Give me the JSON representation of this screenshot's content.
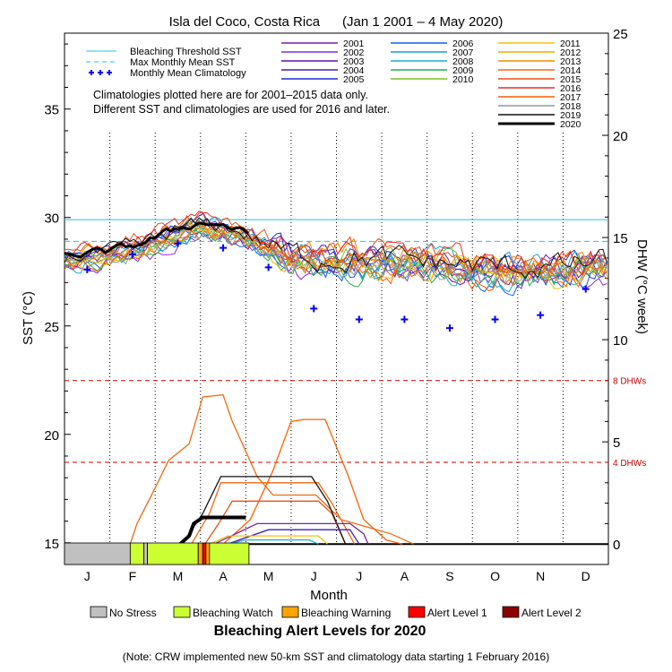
{
  "chart_data": {
    "type": "line",
    "title": "Isla del Coco, Costa Rica      (Jan 1 2001 – 4 May 2020)",
    "xlabel": "Month",
    "ylabel_left": "SST (°C)",
    "ylabel_right": "DHW (°C week)",
    "months": [
      "J",
      "F",
      "M",
      "A",
      "M",
      "J",
      "J",
      "A",
      "S",
      "O",
      "N",
      "D"
    ],
    "sst_axis": {
      "min": 14,
      "max": 38.5,
      "ticks": [
        15,
        20,
        25,
        30,
        35
      ]
    },
    "dhw_axis": {
      "min": -1,
      "max": 25,
      "ticks": [
        0,
        5,
        10,
        15,
        20,
        25
      ]
    },
    "bleaching_threshold_sst": 29.9,
    "max_monthly_mean_sst": 28.9,
    "dhw_thresholds": [
      {
        "value": 4,
        "label": "4 DHWs"
      },
      {
        "value": 8,
        "label": "8 DHWs"
      }
    ],
    "monthly_mean_climatology": [
      27.6,
      28.3,
      28.8,
      28.6,
      27.7,
      25.8,
      25.3,
      25.3,
      24.9,
      25.3,
      25.5,
      26.7
    ],
    "notes": [
      "Climatologies plotted here are for 2001–2015 data only.",
      "Different SST and climatologies are used for 2016 and later."
    ],
    "legend_reference": [
      {
        "name": "Bleaching Threshold SST",
        "color": "#22c4e8",
        "style": "solid"
      },
      {
        "name": "Max Monthly Mean SST",
        "color": "#22c4e8",
        "style": "dashed"
      },
      {
        "name": "Monthly Mean Climatology",
        "color": "#0000ff",
        "style": "plus"
      }
    ],
    "series": [
      {
        "name": "2001",
        "color": "#7a1fa2"
      },
      {
        "name": "2002",
        "color": "#8a2be2"
      },
      {
        "name": "2003",
        "color": "#6a0dad"
      },
      {
        "name": "2004",
        "color": "#3b1fbf"
      },
      {
        "name": "2005",
        "color": "#1f2fd6"
      },
      {
        "name": "2006",
        "color": "#1060e8"
      },
      {
        "name": "2007",
        "color": "#1f9bd6"
      },
      {
        "name": "2008",
        "color": "#1ab0c8"
      },
      {
        "name": "2009",
        "color": "#22b04a"
      },
      {
        "name": "2010",
        "color": "#7fbf2a"
      },
      {
        "name": "2011",
        "color": "#f4c20d"
      },
      {
        "name": "2012",
        "color": "#f2a900"
      },
      {
        "name": "2013",
        "color": "#f08c00"
      },
      {
        "name": "2014",
        "color": "#ee6a10"
      },
      {
        "name": "2015",
        "color": "#e8501a"
      },
      {
        "name": "2016",
        "color": "#ee2a2a"
      },
      {
        "name": "2017",
        "color": "#ff5e00"
      },
      {
        "name": "2018",
        "color": "#999999"
      },
      {
        "name": "2019",
        "color": "#111111"
      },
      {
        "name": "2020",
        "color": "#000000"
      }
    ],
    "dhw_curves": [
      {
        "name": "2016",
        "color": "#ee6a10",
        "points": [
          [
            1.45,
            0
          ],
          [
            1.6,
            1
          ],
          [
            1.9,
            2.3
          ],
          [
            2.3,
            4.1
          ],
          [
            2.75,
            4.9
          ],
          [
            3.05,
            7.2
          ],
          [
            3.5,
            7.3
          ],
          [
            3.7,
            6.0
          ],
          [
            4.25,
            3.3
          ],
          [
            4.6,
            2.4
          ],
          [
            5.55,
            2.4
          ],
          [
            6.1,
            1.2
          ],
          [
            7.2,
            0.5
          ],
          [
            7.7,
            0
          ]
        ]
      },
      {
        "name": "2017",
        "color": "#ff5e00",
        "points": [
          [
            3.5,
            0
          ],
          [
            4.1,
            1.2
          ],
          [
            4.6,
            3.6
          ],
          [
            5.0,
            6.0
          ],
          [
            5.3,
            6.1
          ],
          [
            5.75,
            6.1
          ],
          [
            6.25,
            3.4
          ],
          [
            6.6,
            1.2
          ],
          [
            7.1,
            0.2
          ],
          [
            7.45,
            0
          ]
        ]
      },
      {
        "name": "2014",
        "color": "#ee6a10",
        "points": [
          [
            2.8,
            0
          ],
          [
            3.2,
            1.5
          ],
          [
            3.45,
            3.0
          ],
          [
            4.25,
            3.0
          ],
          [
            5.0,
            3.0
          ],
          [
            5.6,
            3.0
          ],
          [
            5.9,
            2.0
          ],
          [
            6.4,
            0
          ]
        ]
      },
      {
        "name": "2015",
        "color": "#e8501a",
        "points": [
          [
            3.1,
            0
          ],
          [
            3.4,
            1.0
          ],
          [
            3.7,
            2.1
          ],
          [
            4.25,
            2.1
          ],
          [
            5.1,
            2.1
          ],
          [
            5.6,
            2.1
          ],
          [
            5.9,
            1.5
          ],
          [
            6.2,
            0
          ]
        ]
      },
      {
        "name": "2019",
        "color": "#111111",
        "points": [
          [
            2.6,
            0
          ],
          [
            3.05,
            1.5
          ],
          [
            3.45,
            3.3
          ],
          [
            4.1,
            3.3
          ],
          [
            4.7,
            3.3
          ],
          [
            5.45,
            3.3
          ],
          [
            5.8,
            2.1
          ],
          [
            6.2,
            0
          ]
        ]
      },
      {
        "name": "2001",
        "color": "#7a1fa2",
        "points": [
          [
            3.3,
            0
          ],
          [
            4.25,
            1.0
          ],
          [
            5.4,
            1.0
          ],
          [
            6.3,
            1.0
          ],
          [
            6.6,
            0.5
          ],
          [
            6.7,
            0
          ]
        ]
      },
      {
        "name": "2004",
        "color": "#3b1fbf",
        "points": [
          [
            3.6,
            0
          ],
          [
            4.5,
            0.7
          ],
          [
            5.4,
            0.7
          ],
          [
            6.3,
            0.7
          ],
          [
            6.5,
            0
          ]
        ]
      },
      {
        "name": "2011",
        "color": "#f4c20d",
        "points": [
          [
            3.2,
            0
          ],
          [
            3.6,
            0.4
          ],
          [
            5.6,
            0.4
          ],
          [
            5.8,
            0
          ]
        ]
      },
      {
        "name": "2008",
        "color": "#1ab0c8",
        "points": [
          [
            3.6,
            0
          ],
          [
            4.0,
            0.2
          ],
          [
            5.4,
            0.2
          ],
          [
            5.6,
            0
          ]
        ]
      },
      {
        "name": "2020",
        "color": "#000000",
        "points": [
          [
            2.55,
            0
          ],
          [
            2.75,
            0.4
          ],
          [
            2.85,
            1.0
          ],
          [
            3.05,
            1.3
          ],
          [
            3.4,
            1.3
          ],
          [
            4.0,
            1.3
          ]
        ]
      }
    ],
    "alert_bar_2020": [
      {
        "start": 0,
        "end": 1.45,
        "level": "No Stress"
      },
      {
        "start": 1.45,
        "end": 1.75,
        "level": "Bleaching Watch"
      },
      {
        "start": 1.75,
        "end": 1.83,
        "level": "No Stress"
      },
      {
        "start": 1.83,
        "end": 2.95,
        "level": "Bleaching Watch"
      },
      {
        "start": 2.95,
        "end": 3.05,
        "level": "Bleaching Warning"
      },
      {
        "start": 3.05,
        "end": 3.12,
        "level": "Alert Level 1"
      },
      {
        "start": 3.12,
        "end": 3.2,
        "level": "Bleaching Warning"
      },
      {
        "start": 3.2,
        "end": 4.07,
        "level": "Bleaching Watch"
      }
    ],
    "alert_levels": [
      {
        "name": "No Stress",
        "color": "#c0c0c0"
      },
      {
        "name": "Bleaching Watch",
        "color": "#ccff33"
      },
      {
        "name": "Bleaching Warning",
        "color": "#ffa500"
      },
      {
        "name": "Alert Level 1",
        "color": "#ff0000"
      },
      {
        "name": "Alert Level 2",
        "color": "#8b0000"
      }
    ],
    "alert_title": "Bleaching Alert Levels for 2020",
    "footnote": "(Note: CRW implemented new 50-km SST and climatology data starting 1 February 2016)"
  }
}
